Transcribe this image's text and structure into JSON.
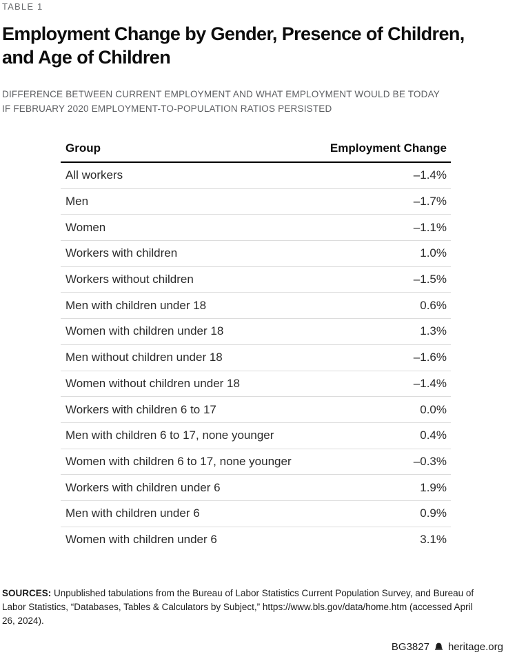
{
  "page": {
    "kicker": "TABLE 1",
    "title_line1": "Employment Change by Gender, Presence of Children,",
    "title_line2": "and Age of Children",
    "subtitle_line1": "DIFFERENCE BETWEEN CURRENT EMPLOYMENT AND WHAT EMPLOYMENT WOULD BE TODAY",
    "subtitle_line2": "IF FEBRUARY 2020 EMPLOYMENT-TO-POPULATION RATIOS PERSISTED"
  },
  "table": {
    "header": {
      "group": "Group",
      "change": "Employment Change"
    },
    "rows": [
      {
        "group": "All workers",
        "value": "–1.4%"
      },
      {
        "group": "Men",
        "value": "–1.7%"
      },
      {
        "group": "Women",
        "value": "–1.1%"
      },
      {
        "group": "Workers with children",
        "value": "1.0%"
      },
      {
        "group": "Workers without children",
        "value": "–1.5%"
      },
      {
        "group": "Men with children under 18",
        "value": "0.6%"
      },
      {
        "group": "Women with children under 18",
        "value": "1.3%"
      },
      {
        "group": "Men without children under 18",
        "value": "–1.6%"
      },
      {
        "group": "Women without children under 18",
        "value": "–1.4%"
      },
      {
        "group": "Workers with children 6 to 17",
        "value": "0.0%"
      },
      {
        "group": "Men with children 6 to 17, none younger",
        "value": "0.4%"
      },
      {
        "group": "Women with children 6 to 17, none younger",
        "value": "–0.3%"
      },
      {
        "group": "Workers with children under 6",
        "value": "1.9%"
      },
      {
        "group": "Men with children under 6",
        "value": "0.9%"
      },
      {
        "group": "Women with children under 6",
        "value": "3.1%"
      }
    ]
  },
  "chart_data": {
    "type": "table",
    "title": "Employment Change by Gender, Presence of Children, and Age of Children",
    "subtitle": "DIFFERENCE BETWEEN CURRENT EMPLOYMENT AND WHAT EMPLOYMENT WOULD BE TODAY IF FEBRUARY 2020 EMPLOYMENT-TO-POPULATION RATIOS PERSISTED",
    "columns": [
      "Group",
      "Employment Change"
    ],
    "rows": [
      {
        "group": "All workers",
        "employment_change_pct": -1.4
      },
      {
        "group": "Men",
        "employment_change_pct": -1.7
      },
      {
        "group": "Women",
        "employment_change_pct": -1.1
      },
      {
        "group": "Workers with children",
        "employment_change_pct": 1.0
      },
      {
        "group": "Workers without children",
        "employment_change_pct": -1.5
      },
      {
        "group": "Men with children under 18",
        "employment_change_pct": 0.6
      },
      {
        "group": "Women with children under 18",
        "employment_change_pct": 1.3
      },
      {
        "group": "Men without children under 18",
        "employment_change_pct": -1.6
      },
      {
        "group": "Women without children under 18",
        "employment_change_pct": -1.4
      },
      {
        "group": "Workers with children 6 to 17",
        "employment_change_pct": 0.0
      },
      {
        "group": "Men with children 6 to 17, none younger",
        "employment_change_pct": 0.4
      },
      {
        "group": "Women with children 6 to 17, none younger",
        "employment_change_pct": -0.3
      },
      {
        "group": "Workers with children under 6",
        "employment_change_pct": 1.9
      },
      {
        "group": "Men with children under 6",
        "employment_change_pct": 0.9
      },
      {
        "group": "Women with children under 6",
        "employment_change_pct": 3.1
      }
    ]
  },
  "sources": {
    "label": "SOURCES:",
    "text": " Unpublished tabulations from the Bureau of Labor Statistics Current Population Survey, and Bureau of Labor Statistics, “Databases, Tables & Calculators by Subject,” https://www.bls.gov/data/home.htm (accessed April 26, 2024)."
  },
  "footer": {
    "doc_id": "BG3827",
    "site": "heritage.org",
    "logo": "liberty-bell-icon"
  }
}
